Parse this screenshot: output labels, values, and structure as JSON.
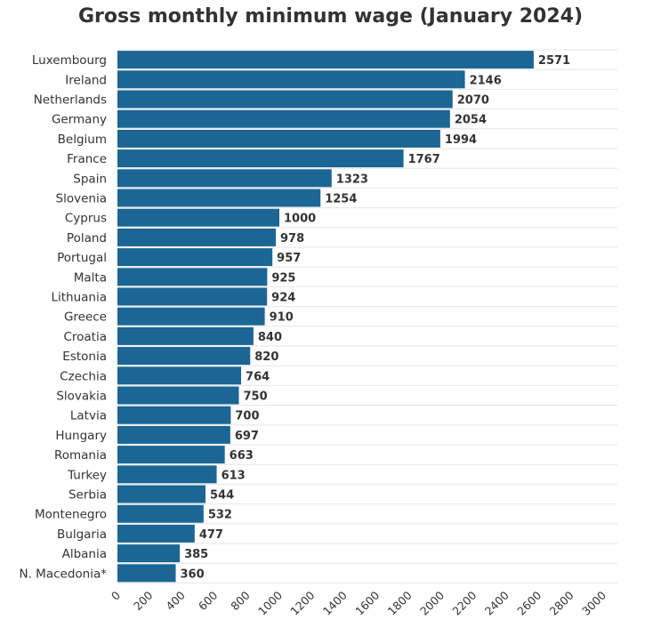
{
  "chart_data": {
    "type": "bar",
    "orientation": "horizontal",
    "title": "Gross monthly minimum wage (January 2024)",
    "xlabel": "",
    "ylabel": "",
    "categories": [
      "Luxembourg",
      "Ireland",
      "Netherlands",
      "Germany",
      "Belgium",
      "France",
      "Spain",
      "Slovenia",
      "Cyprus",
      "Poland",
      "Portugal",
      "Malta",
      "Lithuania",
      "Greece",
      "Croatia",
      "Estonia",
      "Czechia",
      "Slovakia",
      "Latvia",
      "Hungary",
      "Romania",
      "Turkey",
      "Serbia",
      "Montenegro",
      "Bulgaria",
      "Albania",
      "N. Macedonia*"
    ],
    "values": [
      2571,
      2146,
      2070,
      2054,
      1994,
      1767,
      1323,
      1254,
      1000,
      978,
      957,
      925,
      924,
      910,
      840,
      820,
      764,
      750,
      700,
      697,
      663,
      613,
      544,
      532,
      477,
      385,
      360
    ],
    "value_axis_range": [
      0,
      3000
    ],
    "value_axis_ticks": [
      0,
      200,
      400,
      600,
      800,
      1000,
      1200,
      1400,
      1600,
      1800,
      2000,
      2200,
      2400,
      2600,
      2800,
      3000
    ],
    "tick_label_rotation": "diagonal",
    "grid": true,
    "data_labels": true,
    "legend": "none",
    "colors": {
      "bar": "#1b6694",
      "grid": "#e6e6e6",
      "text": "#333333"
    }
  }
}
